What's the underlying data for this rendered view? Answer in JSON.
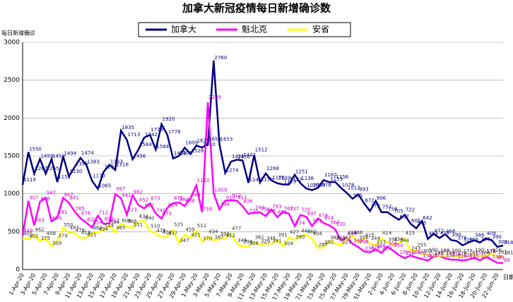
{
  "chart_data": {
    "type": "line",
    "title": "加拿大新冠疫情每日新增确诊数",
    "y_label": "每日新增确诊",
    "x_label": "日期",
    "categories": [
      "1-Apr-20",
      null,
      "3-Apr-20",
      null,
      "5-Apr-20",
      null,
      "7-Apr-20",
      null,
      "9-Apr-20",
      null,
      "11-Apr-20",
      null,
      "13-Apr-20",
      null,
      "15-Apr-20",
      null,
      "17-Apr-20",
      null,
      "19-Apr-20",
      null,
      "21-Apr-20",
      null,
      "23-Apr-20",
      null,
      "25-Apr-20",
      null,
      "27-Apr-20",
      null,
      "29-Apr-20",
      null,
      "1-May-20",
      null,
      "3-May-20",
      null,
      "5-May-20",
      null,
      "7-May-20",
      null,
      "9-May-20",
      null,
      "11-May-20",
      null,
      "13-May-20",
      null,
      "15-May-20",
      null,
      "17-May-20",
      null,
      "19-May-20",
      null,
      "21-May-20",
      null,
      "23-May-20",
      null,
      "25-May-20",
      null,
      "27-May-20",
      null,
      "29-May-20",
      null,
      "31-May-20",
      null,
      "2-Jun-20",
      null,
      "4-Jun-20",
      null,
      "6-Jun-20",
      null,
      "8-Jun-20",
      null,
      "10-Jun-20",
      null,
      "12-Jun-20",
      null,
      "14-Jun-20",
      null,
      "16-Jun-20",
      null,
      "18-Jun-20",
      null,
      "20-Jun-20",
      null,
      "22-Jun-20",
      null
    ],
    "series": [
      {
        "name": "加拿大",
        "color": "#000080",
        "values": [
          1119,
          1550,
          1267,
          1459,
          1265,
          1459,
          1155,
          1494,
          1230,
          1355,
          1474,
          1383,
          1170,
          1065,
          1291,
          1383,
          1316,
          1835,
          1713,
          1456,
          1584,
          1742,
          1778,
          1584,
          1920,
          1778,
          1466,
          1500,
          1609,
          1526,
          1637,
          1610,
          1653,
          2760,
          1653,
          1274,
          1425,
          1450,
          1442,
          1145,
          1512,
          1150,
          1268,
          1176,
          1139,
          1123,
          1123,
          1251,
          1138,
          1070,
          1049,
          1078,
          1182,
          1153,
          1156,
          1078,
          1012,
          935,
          993,
          872,
          772,
          906,
          757,
          758,
          705,
          657,
          722,
          605,
          545,
          642,
          404,
          472,
          416,
          466,
          390,
          376,
          320,
          356,
          386,
          357,
          409,
          390,
          300,
          318
        ]
      },
      {
        "name": "魁北克",
        "color": "#ff00ff",
        "values": [
          449,
          907,
          583,
          896,
          947,
          636,
          691,
          947,
          881,
          765,
          676,
          620,
          554,
          712,
          603,
          612,
          997,
          941,
          723,
          982,
          852,
          807,
          873,
          740,
          673,
          814,
          875,
          887,
          838,
          944,
          1110,
          758,
          2209,
          1009,
          794,
          910,
          912,
          911,
          836,
          735,
          749,
          756,
          706,
          793,
          691,
          762,
          737,
          574,
          720,
          697,
          573,
          674,
          614,
          583,
          530,
          383,
          419,
          340,
          296,
          239,
          229,
          265,
          220,
          300,
          250,
          190,
          150,
          185,
          160,
          138,
          120,
          170,
          180,
          150,
          130,
          129,
          121,
          130,
          155,
          120,
          170,
          130,
          89,
          86
        ]
      },
      {
        "name": "安省",
        "color": "#ffff00",
        "values": [
          405,
          401,
          462,
          375,
          408,
          309,
          379,
          550,
          483,
          478,
          418,
          421,
          483,
          494,
          514,
          584,
          485,
          606,
          566,
          551,
          634,
          640,
          510,
          476,
          424,
          437,
          525,
          347,
          459,
          421,
          511,
          370,
          434,
          387,
          399,
          412,
          477,
          346,
          298,
          308,
          361,
          329,
          345,
          341,
          391,
          304,
          427,
          390,
          441,
          460,
          404,
          287,
          292,
          383,
          344,
          323,
          404,
          446,
          356,
          415,
          344,
          323,
          414,
          356,
          334,
          344,
          415,
          243,
          255,
          203,
          190,
          182,
          183,
          184,
          180,
          178,
          177,
          182,
          190,
          180,
          178,
          216,
          161,
          181
        ]
      }
    ],
    "ylim": [
      0,
      3000
    ],
    "yticks": [
      0,
      500,
      1000,
      1500,
      2000,
      2500,
      3000
    ],
    "grid": true,
    "legend": "top"
  }
}
